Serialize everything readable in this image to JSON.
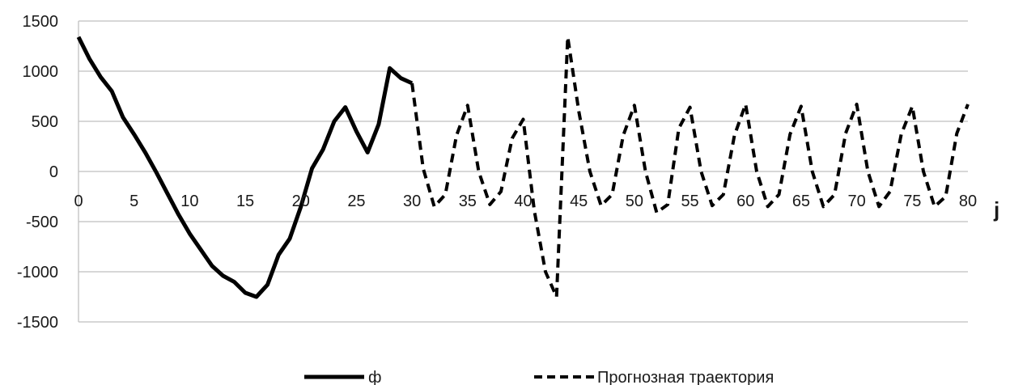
{
  "chart_data": {
    "type": "line",
    "title": "",
    "xlabel": "j",
    "ylabel": "",
    "xlim": [
      0,
      80
    ],
    "ylim": [
      -1500,
      1500
    ],
    "x_ticks": [
      0,
      5,
      10,
      15,
      20,
      25,
      30,
      35,
      40,
      45,
      50,
      55,
      60,
      65,
      70,
      75,
      80
    ],
    "y_ticks": [
      1500,
      1000,
      500,
      0,
      -500,
      -1000,
      -1500
    ],
    "grid": "horizontal",
    "legend_position": "bottom",
    "series": [
      {
        "name": "ф",
        "style": "solid",
        "color": "#000000",
        "x": [
          0,
          1,
          2,
          3,
          4,
          5,
          6,
          7,
          8,
          9,
          10,
          11,
          12,
          13,
          14,
          15,
          16,
          17,
          18,
          19,
          20,
          21,
          22,
          23,
          24,
          25,
          26,
          27,
          28,
          29,
          30
        ],
        "y": [
          1340,
          1120,
          940,
          800,
          540,
          370,
          190,
          -10,
          -220,
          -430,
          -620,
          -780,
          -940,
          -1040,
          -1100,
          -1210,
          -1250,
          -1130,
          -830,
          -670,
          -350,
          30,
          220,
          500,
          640,
          400,
          190,
          470,
          1030,
          930,
          880
        ]
      },
      {
        "name": "Прогнозная траектория",
        "style": "dashed",
        "color": "#000000",
        "x": [
          30,
          31,
          32,
          33,
          34,
          35,
          36,
          37,
          38,
          39,
          40,
          41,
          42,
          43,
          44,
          45,
          46,
          47,
          48,
          49,
          50,
          51,
          52,
          53,
          54,
          55,
          56,
          57,
          58,
          59,
          60,
          61,
          62,
          63,
          64,
          65,
          66,
          67,
          68,
          69,
          70,
          71,
          72,
          73,
          74,
          75,
          76,
          77,
          78,
          79,
          80
        ],
        "y": [
          880,
          30,
          -350,
          -230,
          360,
          660,
          0,
          -330,
          -200,
          330,
          520,
          -390,
          -1000,
          -1250,
          1340,
          600,
          0,
          -340,
          -230,
          360,
          660,
          0,
          -410,
          -330,
          430,
          640,
          0,
          -340,
          -230,
          360,
          670,
          0,
          -350,
          -230,
          370,
          650,
          0,
          -350,
          -230,
          380,
          670,
          0,
          -350,
          -200,
          370,
          650,
          0,
          -350,
          -250,
          380,
          670
        ]
      }
    ]
  }
}
